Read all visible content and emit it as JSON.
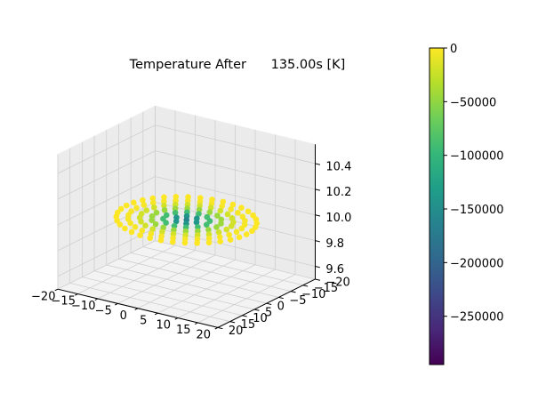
{
  "chart_data": {
    "type": "scatter3d",
    "title": "Temperature After      135.00s [K]",
    "xlim": [
      -20,
      20
    ],
    "ylim": [
      -20,
      20
    ],
    "zlim": [
      9.5,
      10.55
    ],
    "x_ticks": [
      "−20",
      "−15",
      "−10",
      "−5",
      "0",
      "5",
      "10",
      "15",
      "20"
    ],
    "y_ticks": [
      "−20",
      "−15",
      "−10",
      "−5",
      "0",
      "5",
      "10",
      "15",
      "20"
    ],
    "z_ticks": [
      "9.6",
      "9.8",
      "10.0",
      "10.2",
      "10.4"
    ],
    "colormap": "viridis",
    "colorbar": {
      "min": -295000,
      "max": 0,
      "ticks": [
        "0",
        "−50000",
        "−100000",
        "−150000",
        "−200000",
        "−250000"
      ],
      "tick_values": [
        0,
        -50000,
        -100000,
        -150000,
        -200000,
        -250000
      ]
    },
    "z_value": 10.0,
    "points": {
      "description": "Nodes on concentric rings in the plane z = 10.0",
      "rings": [
        {
          "radius": 0,
          "count": 1,
          "temperature": -160000
        },
        {
          "radius": 2.5,
          "count": 6,
          "temperature": -140000
        },
        {
          "radius": 5,
          "count": 12,
          "temperature": -90000
        },
        {
          "radius": 7.5,
          "count": 18,
          "temperature": -45000
        },
        {
          "radius": 10,
          "count": 24,
          "temperature": -20000
        },
        {
          "radius": 12.5,
          "count": 30,
          "temperature": -3000
        },
        {
          "radius": 15,
          "count": 36,
          "temperature": 0
        }
      ]
    }
  }
}
